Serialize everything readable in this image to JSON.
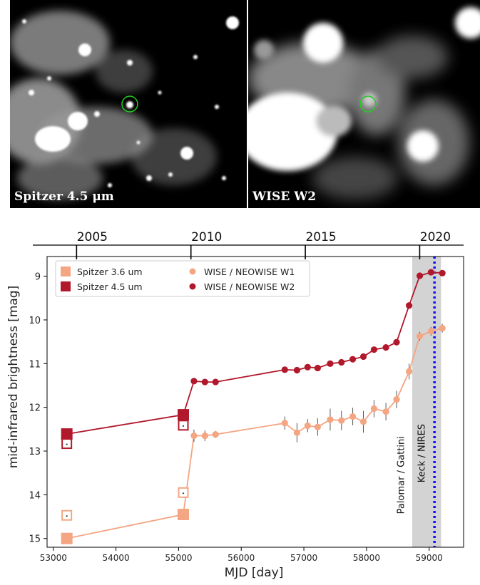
{
  "images": {
    "left_label": "Spitzer 4.5 μm",
    "right_label": "WISE W2",
    "marker_color": "#22cc22"
  },
  "chart_data": {
    "type": "line",
    "xlabel": "MJD [day]",
    "ylabel": "mid-infrared brightness [mag]",
    "xlim": [
      52900,
      59550
    ],
    "ylim": [
      15.2,
      8.55
    ],
    "y_inverted": true,
    "x_ticks": [
      53000,
      54000,
      55000,
      56000,
      57000,
      58000,
      59000
    ],
    "y_ticks": [
      9,
      10,
      11,
      12,
      13,
      14,
      15
    ],
    "top_axis": {
      "label_ticks": [
        {
          "year": "2005",
          "mjd": 53371
        },
        {
          "year": "2010",
          "mjd": 55197
        },
        {
          "year": "2015",
          "mjd": 57023
        },
        {
          "year": "2020",
          "mjd": 58849
        }
      ]
    },
    "shaded_region": {
      "x": [
        58730,
        59190
      ],
      "color": "#d3d3d3"
    },
    "vertical_line": {
      "x": 59085,
      "color": "#1010ff",
      "style": "dotted"
    },
    "annotations": [
      {
        "text": "Palomar / Gattini",
        "x": 58600,
        "y": 13.55
      },
      {
        "text": "Keck / NIRES",
        "x": 58930,
        "y": 13.05
      }
    ],
    "legend": {
      "placement": "top-left",
      "entries": [
        {
          "label": "Spitzer 3.6 um",
          "marker": "square",
          "color": "#f4a582"
        },
        {
          "label": "Spitzer 4.5 um",
          "marker": "square",
          "color": "#b2182b"
        },
        {
          "label": "WISE / NEOWISE W1",
          "marker": "circle",
          "color": "#f4a582"
        },
        {
          "label": "WISE / NEOWISE W2",
          "marker": "circle",
          "color": "#b2182b"
        }
      ]
    },
    "series": [
      {
        "name": "WISE / NEOWISE W2",
        "color": "#b2182b",
        "line": [
          [
            53215,
            12.61
          ],
          [
            55075,
            12.17
          ],
          [
            55245,
            11.4
          ],
          [
            55420,
            11.42
          ],
          [
            55590,
            11.42
          ],
          [
            56695,
            11.14
          ],
          [
            56890,
            11.15
          ],
          [
            57060,
            11.08
          ],
          [
            57220,
            11.1
          ],
          [
            57420,
            11.0
          ],
          [
            57600,
            10.97
          ],
          [
            57780,
            10.9
          ],
          [
            57950,
            10.84
          ],
          [
            58120,
            10.68
          ],
          [
            58310,
            10.63
          ],
          [
            58480,
            10.51
          ],
          [
            58680,
            9.67
          ],
          [
            58850,
            8.99
          ],
          [
            59030,
            8.91
          ],
          [
            59210,
            8.93
          ]
        ],
        "points": [
          [
            55245,
            11.4
          ],
          [
            55420,
            11.42
          ],
          [
            55590,
            11.42
          ],
          [
            56695,
            11.14
          ],
          [
            56890,
            11.15
          ],
          [
            57060,
            11.08
          ],
          [
            57220,
            11.1
          ],
          [
            57420,
            11.0
          ],
          [
            57600,
            10.97
          ],
          [
            57780,
            10.9
          ],
          [
            57950,
            10.84
          ],
          [
            58120,
            10.68
          ],
          [
            58310,
            10.63
          ],
          [
            58480,
            10.51
          ],
          [
            58680,
            9.67
          ],
          [
            58850,
            8.99
          ],
          [
            59030,
            8.91
          ],
          [
            59210,
            8.93
          ]
        ]
      },
      {
        "name": "WISE / NEOWISE W1",
        "color": "#f4a582",
        "line": [
          [
            53215,
            15.0
          ],
          [
            55075,
            14.45
          ],
          [
            55245,
            12.65
          ],
          [
            55420,
            12.65
          ],
          [
            55590,
            12.62
          ],
          [
            56695,
            12.36
          ],
          [
            56890,
            12.58
          ],
          [
            57060,
            12.42
          ],
          [
            57220,
            12.45
          ],
          [
            57420,
            12.28
          ],
          [
            57600,
            12.3
          ],
          [
            57780,
            12.21
          ],
          [
            57950,
            12.33
          ],
          [
            58120,
            12.03
          ],
          [
            58310,
            12.1
          ],
          [
            58480,
            11.82
          ],
          [
            58680,
            11.18
          ],
          [
            58850,
            10.37
          ],
          [
            59030,
            10.26
          ],
          [
            59210,
            10.19
          ]
        ],
        "points": [
          [
            55245,
            12.65
          ],
          [
            55420,
            12.65
          ],
          [
            55590,
            12.62
          ],
          [
            56695,
            12.36
          ],
          [
            56890,
            12.58
          ],
          [
            57060,
            12.42
          ],
          [
            57220,
            12.45
          ],
          [
            57420,
            12.28
          ],
          [
            57600,
            12.3
          ],
          [
            57780,
            12.21
          ],
          [
            57950,
            12.33
          ],
          [
            58120,
            12.03
          ],
          [
            58310,
            12.1
          ],
          [
            58480,
            11.82
          ],
          [
            58680,
            11.18
          ],
          [
            58850,
            10.37
          ],
          [
            59030,
            10.26
          ],
          [
            59210,
            10.19
          ]
        ],
        "errors": [
          0.14,
          0.12,
          0.08,
          0.15,
          0.22,
          0.15,
          0.2,
          0.25,
          0.22,
          0.2,
          0.25,
          0.2,
          0.2,
          0.2,
          0.18,
          0.1,
          0.1,
          0.1
        ]
      },
      {
        "name": "Spitzer 4.5 um",
        "color": "#b2182b",
        "filled": [
          [
            53215,
            12.61
          ],
          [
            55075,
            12.17
          ]
        ],
        "open": [
          [
            53215,
            12.83
          ],
          [
            55075,
            12.41
          ]
        ]
      },
      {
        "name": "Spitzer 3.6 um",
        "color": "#f4a582",
        "filled": [
          [
            53215,
            15.0
          ],
          [
            55075,
            14.45
          ]
        ],
        "open": [
          [
            53215,
            14.47
          ],
          [
            55075,
            13.95
          ]
        ]
      }
    ]
  }
}
